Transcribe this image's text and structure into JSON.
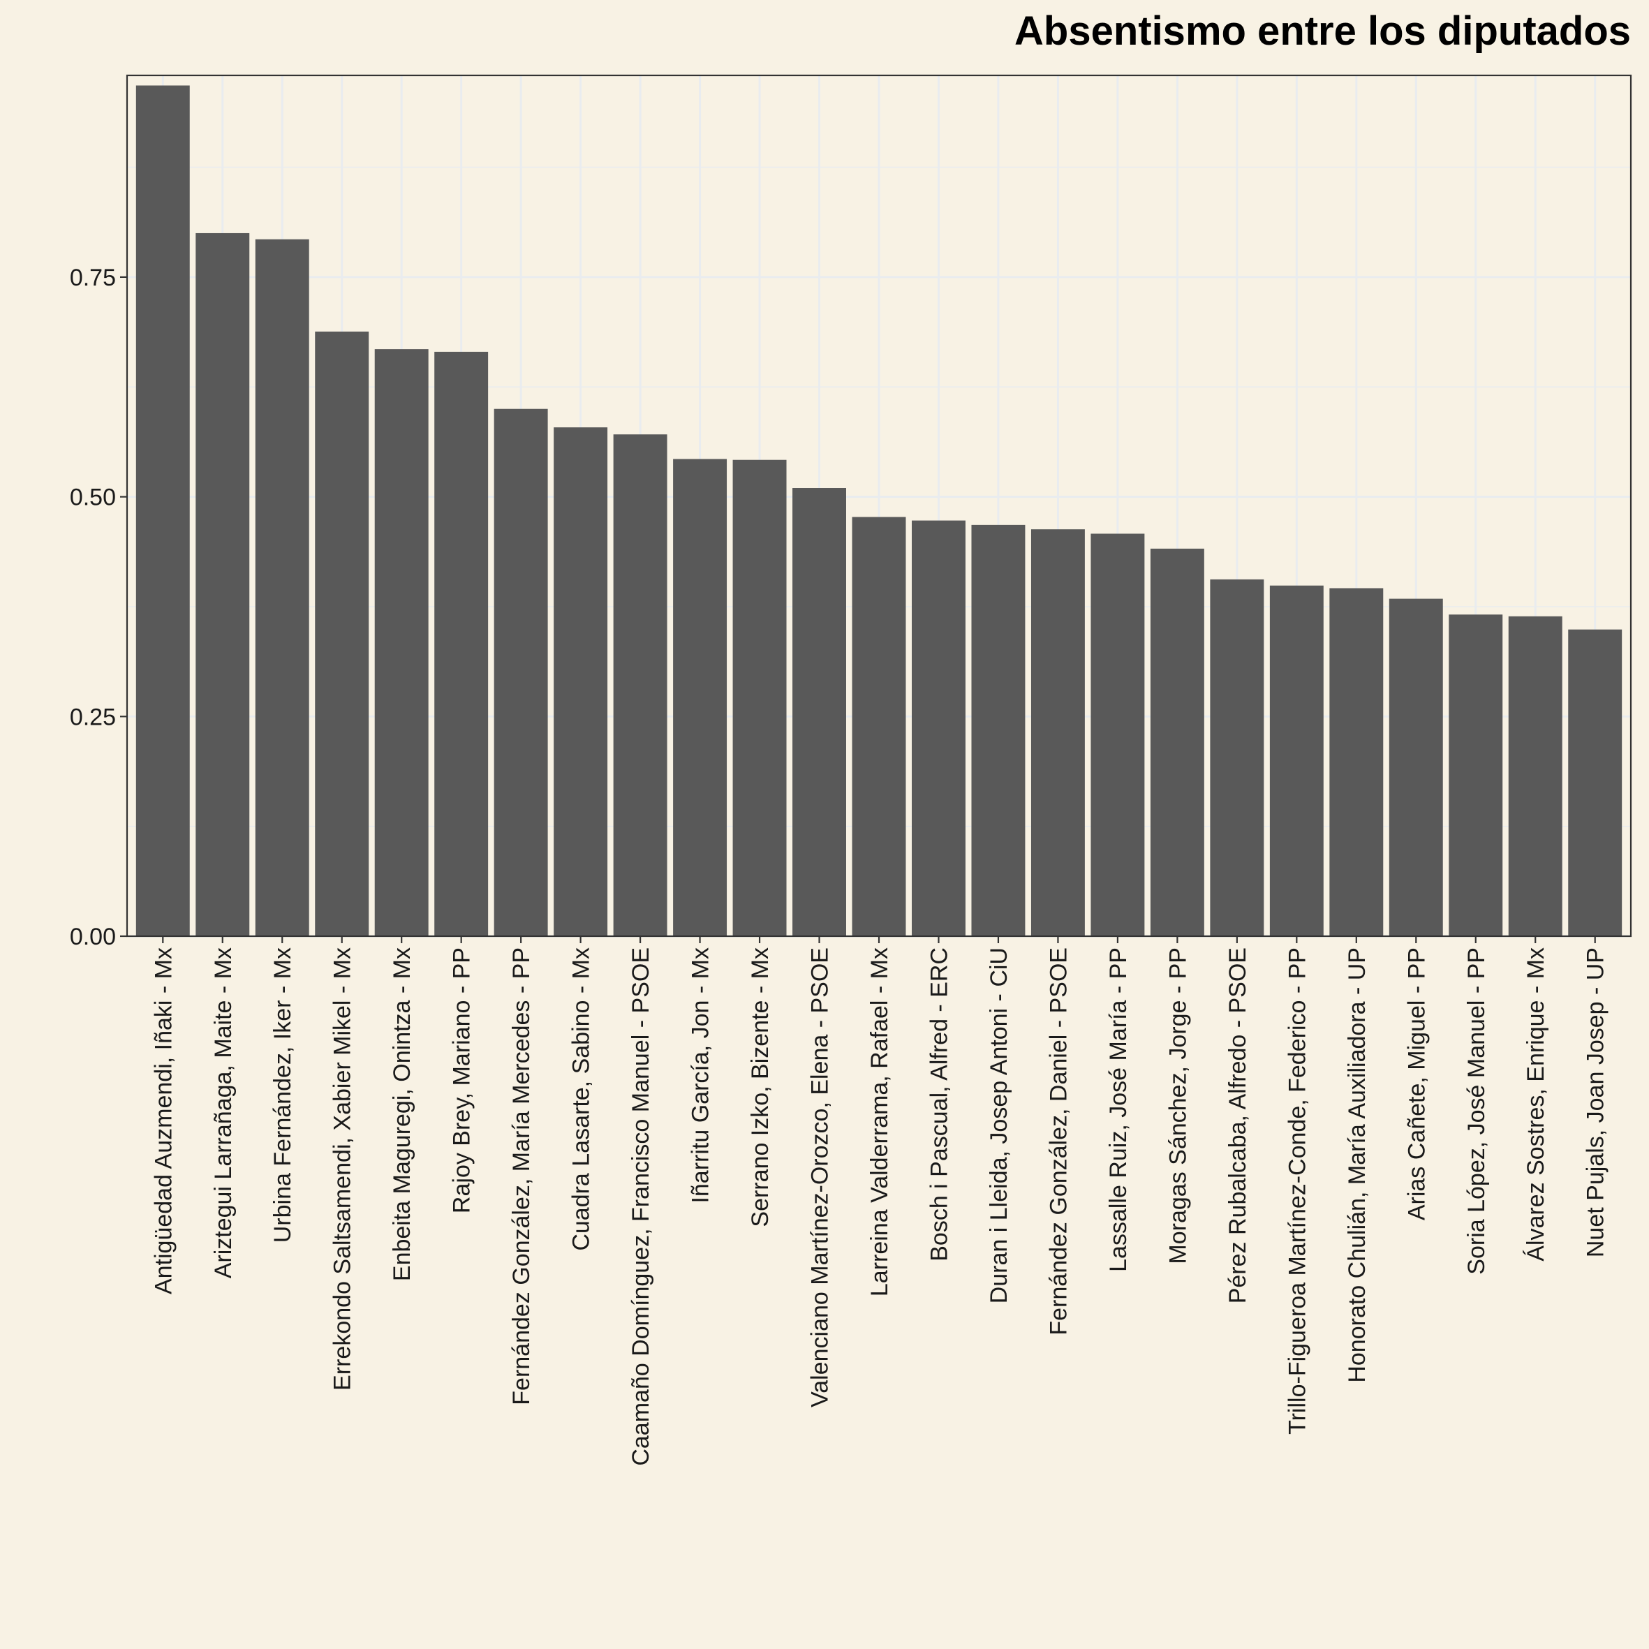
{
  "chart_data": {
    "type": "bar",
    "title": "Absentismo entre los diputados",
    "xlabel": "",
    "ylabel": "",
    "ylim": [
      0,
      0.9795
    ],
    "yticks": [
      "0.00",
      "0.25",
      "0.50",
      "0.75"
    ],
    "ytick_values": [
      0,
      0.25,
      0.5,
      0.75
    ],
    "grid": true,
    "colors": {
      "bar": "#595959",
      "panel": "#f8f2e4",
      "grid": "#e9ecef",
      "border": "#333333"
    },
    "categories": [
      "Antigüedad Auzmendi, Iñaki - Mx",
      "Ariztegui Larrañaga, Maite - Mx",
      "Urbina Fernández, Iker - Mx",
      "Errekondo Saltsamendi, Xabier Mikel - Mx",
      "Enbeita Maguregi, Onintza - Mx",
      "Rajoy Brey, Mariano - PP",
      "Fernández González, María Mercedes - PP",
      "Cuadra Lasarte, Sabino - Mx",
      "Caamaño Domínguez, Francisco Manuel - PSOE",
      "Iñarritu García, Jon - Mx",
      "Serrano Izko, Bizente - Mx",
      "Valenciano Martínez-Orozco, Elena - PSOE",
      "Larreina Valderrama, Rafael - Mx",
      "Bosch i Pascual, Alfred - ERC",
      "Duran i Lleida, Josep Antoni - CiU",
      "Fernández González, Daniel - PSOE",
      "Lassalle Ruiz, José María - PP",
      "Moragas Sánchez, Jorge - PP",
      "Pérez Rubalcaba, Alfredo - PSOE",
      "Trillo-Figueroa Martínez-Conde, Federico - PP",
      "Honorato Chulián, María Auxiliadora - UP",
      "Arias Cañete, Miguel - PP",
      "Soria López, José Manuel - PP",
      "Álvarez Sostres, Enrique - Mx",
      "Nuet Pujals, Joan Josep - UP"
    ],
    "values": [
      0.968,
      0.8,
      0.793,
      0.688,
      0.668,
      0.665,
      0.6,
      0.579,
      0.571,
      0.543,
      0.542,
      0.51,
      0.477,
      0.473,
      0.468,
      0.463,
      0.458,
      0.441,
      0.406,
      0.399,
      0.396,
      0.384,
      0.366,
      0.364,
      0.349
    ]
  }
}
